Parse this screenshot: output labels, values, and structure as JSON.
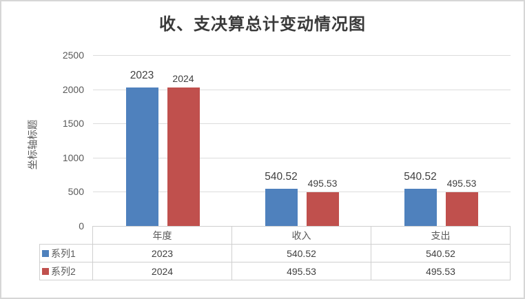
{
  "chart_data": {
    "type": "bar",
    "title": "收、支决算总计变动情况图",
    "y_axis_title": "坐标轴标题",
    "categories": [
      "年度",
      "收入",
      "支出"
    ],
    "series": [
      {
        "name": "系列1",
        "color": "#4F81BD",
        "values": [
          2023,
          540.52,
          540.52
        ],
        "labels": [
          "2023",
          "540.52",
          "540.52"
        ]
      },
      {
        "name": "系列2",
        "color": "#C0504D",
        "values": [
          2024,
          495.53,
          495.53
        ],
        "labels": [
          "2024",
          "495.53",
          "495.53"
        ]
      }
    ],
    "ylim": [
      0,
      2500
    ],
    "y_ticks": [
      "2500",
      "2000",
      "1500",
      "1000",
      "500",
      "0"
    ],
    "grid": true,
    "legend_position": "data-table-left",
    "colors": {
      "gridline": "#dcdcdc",
      "table_border": "#cfcfcf",
      "tick_text": "#595959",
      "label_text": "#3f3f3f",
      "frame_border": "#d6d6d6"
    }
  }
}
